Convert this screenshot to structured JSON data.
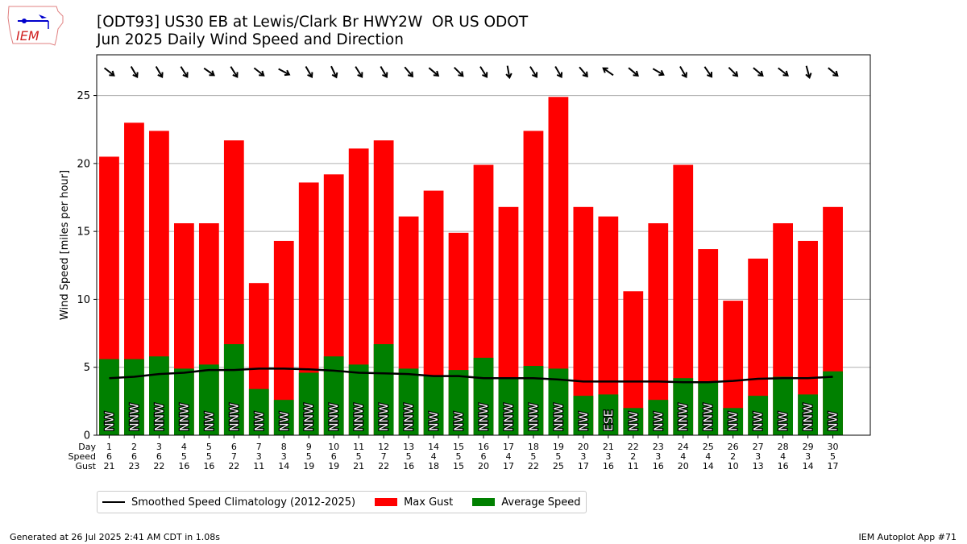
{
  "header": {
    "title_line1": "[ODT93] US30 EB at Lewis/Clark Br HWY2W  OR US ODOT",
    "title_line2": "Jun 2025 Daily Wind Speed and Direction",
    "logo_text": "IEM"
  },
  "footer": {
    "left": "Generated at 26 Jul 2025 2:41 AM CDT in 1.08s",
    "right": "IEM Autoplot App #71"
  },
  "colors": {
    "gust": "#ff0000",
    "avg": "#008000",
    "clim": "#000000"
  },
  "chart_data": {
    "type": "bar",
    "title": "Jun 2025 Daily Wind Speed and Direction",
    "ylabel": "Wind Speed [miles per hour]",
    "ylim": [
      0,
      28
    ],
    "yticks": [
      0,
      5,
      10,
      15,
      20,
      25
    ],
    "xlim": [
      0.5,
      31.5
    ],
    "grid": "y",
    "legend_placement": "bottom-left outside",
    "row_labels": [
      "Day",
      "Speed",
      "Gust"
    ],
    "days": [
      1,
      2,
      3,
      4,
      5,
      6,
      7,
      8,
      9,
      10,
      11,
      12,
      13,
      14,
      15,
      16,
      17,
      18,
      19,
      20,
      21,
      22,
      23,
      24,
      25,
      26,
      27,
      28,
      29,
      30
    ],
    "speed_labels": [
      6,
      6,
      6,
      5,
      5,
      7,
      3,
      3,
      5,
      6,
      5,
      7,
      5,
      4,
      5,
      6,
      4,
      5,
      5,
      3,
      3,
      2,
      3,
      4,
      4,
      2,
      3,
      4,
      3,
      5
    ],
    "gust_labels": [
      21,
      23,
      22,
      16,
      16,
      22,
      11,
      14,
      19,
      19,
      21,
      22,
      16,
      18,
      15,
      20,
      17,
      22,
      25,
      17,
      16,
      11,
      16,
      20,
      14,
      10,
      13,
      16,
      14,
      17
    ],
    "directions": [
      "NW",
      "NNW",
      "NNW",
      "NNW",
      "NW",
      "NNW",
      "NW",
      "NW",
      "NNW",
      "NNW",
      "NNW",
      "NNW",
      "NNW",
      "NW",
      "NW",
      "NNW",
      "NNW",
      "NNW",
      "NNW",
      "NW",
      "ESE",
      "NW",
      "NW",
      "NNW",
      "NNW",
      "NW",
      "NW",
      "NW",
      "NNW",
      "NW"
    ],
    "arrow_bearing_deg": [
      128,
      150,
      150,
      148,
      125,
      148,
      128,
      118,
      150,
      155,
      148,
      150,
      140,
      130,
      135,
      148,
      170,
      148,
      150,
      140,
      305,
      130,
      120,
      150,
      145,
      135,
      130,
      128,
      165,
      130
    ],
    "series": [
      {
        "name": "Max Gust",
        "values": [
          20.5,
          23.0,
          22.4,
          15.6,
          15.6,
          21.7,
          11.2,
          14.3,
          18.6,
          19.2,
          21.1,
          21.7,
          16.1,
          18.0,
          14.9,
          19.9,
          16.8,
          22.4,
          24.9,
          16.8,
          16.1,
          10.6,
          15.6,
          19.9,
          13.7,
          9.9,
          13.0,
          15.6,
          14.3,
          16.8
        ]
      },
      {
        "name": "Average Speed",
        "values": [
          5.6,
          5.6,
          5.8,
          4.9,
          5.2,
          6.7,
          3.4,
          2.6,
          4.6,
          5.8,
          5.2,
          6.7,
          4.9,
          4.4,
          4.8,
          5.7,
          4.2,
          5.1,
          4.9,
          2.9,
          3.0,
          2.0,
          2.6,
          4.2,
          3.9,
          2.0,
          2.9,
          4.3,
          3.0,
          4.7
        ]
      },
      {
        "name": "Smoothed Speed Climatology (2012-2025)",
        "values": [
          4.2,
          4.3,
          4.5,
          4.6,
          4.8,
          4.8,
          4.9,
          4.9,
          4.85,
          4.75,
          4.6,
          4.55,
          4.5,
          4.35,
          4.35,
          4.2,
          4.2,
          4.2,
          4.1,
          3.95,
          3.95,
          3.95,
          3.95,
          3.9,
          3.9,
          4.0,
          4.15,
          4.2,
          4.2,
          4.3
        ]
      }
    ]
  }
}
